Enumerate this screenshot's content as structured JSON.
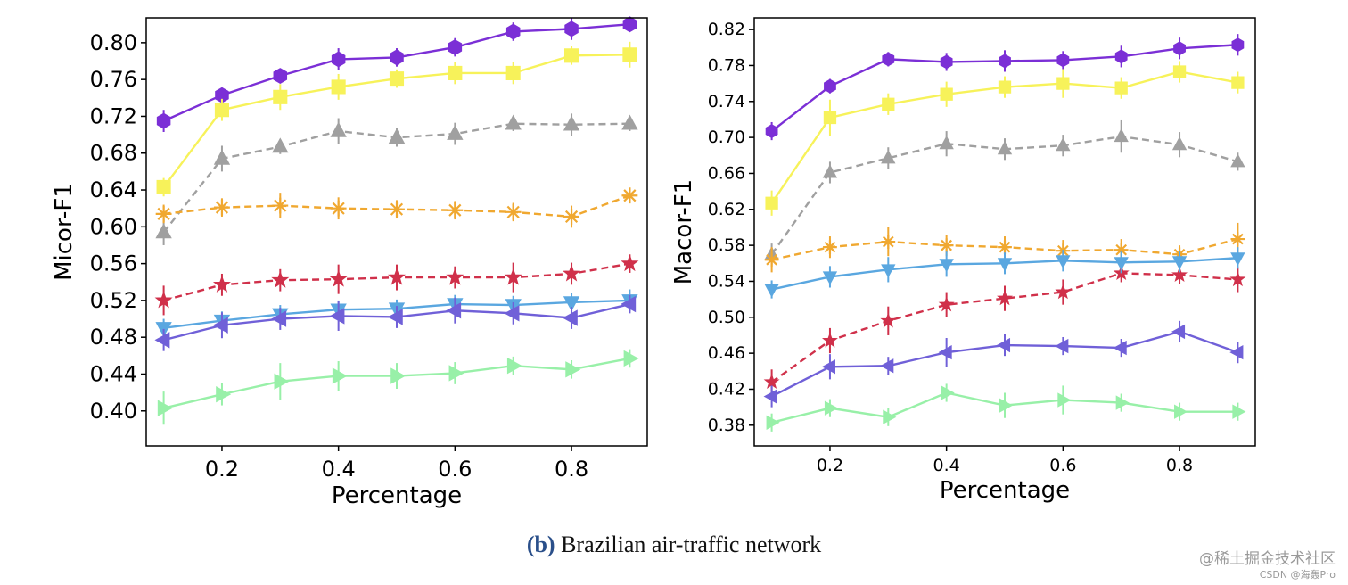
{
  "caption": {
    "label": "(b)",
    "text": "Brazilian air-traffic network"
  },
  "watermark": {
    "line1": "@稀土掘金技术社区",
    "line2": "CSDN @海轰Pro"
  },
  "chart_data": [
    {
      "type": "line",
      "xlabel": "Percentage",
      "ylabel": "Micor-F1",
      "xlim": [
        0.07,
        0.93
      ],
      "ylim": [
        0.362,
        0.827
      ],
      "xticks": [
        0.2,
        0.4,
        0.6,
        0.8
      ],
      "xtick_labels": [
        "0.2",
        "0.4",
        "0.6",
        "0.8"
      ],
      "yticks": [
        0.4,
        0.44,
        0.48,
        0.52,
        0.56,
        0.6,
        0.64,
        0.68,
        0.72,
        0.76,
        0.8
      ],
      "ytick_labels": [
        "0.40",
        "0.44",
        "0.48",
        "0.52",
        "0.56",
        "0.60",
        "0.64",
        "0.68",
        "0.72",
        "0.76",
        "0.80"
      ],
      "x": [
        0.1,
        0.2,
        0.3,
        0.4,
        0.5,
        0.6,
        0.7,
        0.8,
        0.9
      ],
      "series": [
        {
          "color": "#7b2fd6",
          "marker": "hexagon",
          "dashed": false,
          "values": [
            0.715,
            0.743,
            0.764,
            0.782,
            0.784,
            0.795,
            0.812,
            0.815,
            0.82
          ],
          "errors": [
            0.012,
            0.008,
            0.008,
            0.012,
            0.01,
            0.01,
            0.01,
            0.012,
            0.008
          ]
        },
        {
          "color": "#f7f25a",
          "marker": "square",
          "dashed": false,
          "values": [
            0.643,
            0.727,
            0.741,
            0.752,
            0.761,
            0.767,
            0.767,
            0.786,
            0.787
          ],
          "errors": [
            0.01,
            0.012,
            0.014,
            0.014,
            0.01,
            0.012,
            0.012,
            0.01,
            0.014
          ]
        },
        {
          "color": "#a0a0a0",
          "marker": "triangle-up",
          "dashed": true,
          "values": [
            0.594,
            0.674,
            0.687,
            0.704,
            0.697,
            0.701,
            0.712,
            0.711,
            0.712
          ],
          "errors": [
            0.014,
            0.014,
            0.008,
            0.014,
            0.01,
            0.012,
            0.008,
            0.012,
            0.008
          ]
        },
        {
          "color": "#f0a830",
          "marker": "x-star",
          "dashed": true,
          "values": [
            0.614,
            0.621,
            0.623,
            0.62,
            0.619,
            0.618,
            0.616,
            0.611,
            0.634
          ],
          "errors": [
            0.01,
            0.01,
            0.014,
            0.012,
            0.01,
            0.01,
            0.01,
            0.012,
            0.008
          ]
        },
        {
          "color": "#d0304a",
          "marker": "star",
          "dashed": true,
          "values": [
            0.52,
            0.537,
            0.542,
            0.543,
            0.545,
            0.545,
            0.545,
            0.549,
            0.56
          ],
          "errors": [
            0.016,
            0.012,
            0.012,
            0.016,
            0.014,
            0.012,
            0.016,
            0.012,
            0.01
          ]
        },
        {
          "color": "#5aa7e0",
          "marker": "triangle-down",
          "dashed": false,
          "values": [
            0.49,
            0.498,
            0.505,
            0.51,
            0.511,
            0.516,
            0.515,
            0.518,
            0.52
          ],
          "errors": [
            0.01,
            0.01,
            0.01,
            0.01,
            0.01,
            0.01,
            0.01,
            0.01,
            0.012
          ]
        },
        {
          "color": "#7060d8",
          "marker": "triangle-left",
          "dashed": false,
          "values": [
            0.477,
            0.493,
            0.5,
            0.503,
            0.502,
            0.509,
            0.506,
            0.501,
            0.516
          ],
          "errors": [
            0.012,
            0.014,
            0.012,
            0.016,
            0.012,
            0.014,
            0.012,
            0.012,
            0.01
          ]
        },
        {
          "color": "#98f0a8",
          "marker": "triangle-right",
          "dashed": false,
          "values": [
            0.403,
            0.418,
            0.432,
            0.438,
            0.438,
            0.441,
            0.449,
            0.445,
            0.457
          ],
          "errors": [
            0.018,
            0.012,
            0.02,
            0.016,
            0.014,
            0.012,
            0.01,
            0.01,
            0.01
          ]
        }
      ]
    },
    {
      "type": "line",
      "xlabel": "Percentage",
      "ylabel": "Macor-F1",
      "xlim": [
        0.07,
        0.93
      ],
      "ylim": [
        0.357,
        0.833
      ],
      "xticks": [
        0.2,
        0.4,
        0.6,
        0.8
      ],
      "xtick_labels": [
        "0.2",
        "0.4",
        "0.6",
        "0.8"
      ],
      "yticks": [
        0.38,
        0.42,
        0.46,
        0.5,
        0.54,
        0.58,
        0.62,
        0.66,
        0.7,
        0.74,
        0.78,
        0.82
      ],
      "ytick_labels": [
        "0.38",
        "0.42",
        "0.46",
        "0.50",
        "0.54",
        "0.58",
        "0.62",
        "0.66",
        "0.70",
        "0.74",
        "0.78",
        "0.82"
      ],
      "x": [
        0.1,
        0.2,
        0.3,
        0.4,
        0.5,
        0.6,
        0.7,
        0.8,
        0.9
      ],
      "series": [
        {
          "color": "#7b2fd6",
          "marker": "hexagon",
          "dashed": false,
          "values": [
            0.707,
            0.757,
            0.787,
            0.784,
            0.785,
            0.786,
            0.79,
            0.799,
            0.803
          ],
          "errors": [
            0.01,
            0.008,
            0.008,
            0.01,
            0.012,
            0.01,
            0.012,
            0.012,
            0.012
          ]
        },
        {
          "color": "#f7f25a",
          "marker": "square",
          "dashed": false,
          "values": [
            0.627,
            0.722,
            0.737,
            0.748,
            0.756,
            0.76,
            0.755,
            0.773,
            0.761
          ],
          "errors": [
            0.014,
            0.02,
            0.012,
            0.014,
            0.012,
            0.016,
            0.012,
            0.012,
            0.012
          ]
        },
        {
          "color": "#a0a0a0",
          "marker": "triangle-up",
          "dashed": true,
          "values": [
            0.57,
            0.661,
            0.677,
            0.693,
            0.687,
            0.691,
            0.701,
            0.692,
            0.673
          ],
          "errors": [
            0.012,
            0.012,
            0.012,
            0.014,
            0.012,
            0.012,
            0.018,
            0.014,
            0.01
          ]
        },
        {
          "color": "#f0a830",
          "marker": "x-star",
          "dashed": true,
          "values": [
            0.564,
            0.578,
            0.584,
            0.58,
            0.578,
            0.574,
            0.575,
            0.57,
            0.587
          ],
          "errors": [
            0.014,
            0.012,
            0.016,
            0.012,
            0.012,
            0.012,
            0.012,
            0.01,
            0.018
          ]
        },
        {
          "color": "#d0304a",
          "marker": "star",
          "dashed": true,
          "values": [
            0.428,
            0.474,
            0.496,
            0.514,
            0.521,
            0.528,
            0.549,
            0.547,
            0.542
          ],
          "errors": [
            0.014,
            0.014,
            0.016,
            0.014,
            0.014,
            0.014,
            0.01,
            0.01,
            0.014
          ]
        },
        {
          "color": "#5aa7e0",
          "marker": "triangle-down",
          "dashed": false,
          "values": [
            0.531,
            0.545,
            0.553,
            0.559,
            0.56,
            0.563,
            0.561,
            0.562,
            0.566
          ],
          "errors": [
            0.01,
            0.012,
            0.014,
            0.014,
            0.012,
            0.012,
            0.012,
            0.012,
            0.012
          ]
        },
        {
          "color": "#7060d8",
          "marker": "triangle-left",
          "dashed": false,
          "values": [
            0.412,
            0.445,
            0.446,
            0.461,
            0.469,
            0.468,
            0.466,
            0.484,
            0.461
          ],
          "errors": [
            0.012,
            0.014,
            0.01,
            0.016,
            0.012,
            0.01,
            0.01,
            0.012,
            0.012
          ]
        },
        {
          "color": "#98f0a8",
          "marker": "triangle-right",
          "dashed": false,
          "values": [
            0.383,
            0.399,
            0.389,
            0.416,
            0.402,
            0.408,
            0.405,
            0.395,
            0.395
          ],
          "errors": [
            0.01,
            0.01,
            0.01,
            0.01,
            0.014,
            0.016,
            0.01,
            0.01,
            0.01
          ]
        }
      ]
    }
  ]
}
